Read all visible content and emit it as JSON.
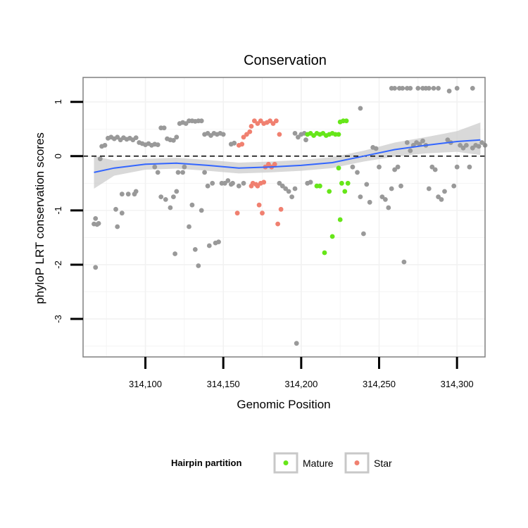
{
  "chart_data": {
    "type": "scatter",
    "title": "Conservation",
    "xlabel": "Genomic Position",
    "ylabel": "phyloP LRT conservation scores",
    "xlim": [
      314060,
      314318
    ],
    "ylim": [
      -3.7,
      1.45
    ],
    "x_ticks": [
      314100,
      314150,
      314200,
      314250,
      314300
    ],
    "x_tick_labels": [
      "314,100",
      "314,150",
      "314,200",
      "314,250",
      "314,300"
    ],
    "y_ticks": [
      1,
      0,
      -1,
      -2,
      -3
    ],
    "y_tick_labels": [
      "1",
      "0",
      "-1",
      "-2",
      "-3"
    ],
    "grid": true,
    "reference_line": {
      "y": 0,
      "style": "dashed"
    },
    "legend": {
      "title": "Hairpin partition",
      "position": "bottom",
      "items": [
        {
          "label": "Mature",
          "color": "#66e619"
        },
        {
          "label": "Star",
          "color": "#f08070"
        }
      ]
    },
    "colors": {
      "other": "#999999",
      "mature": "#66e619",
      "star": "#f08070",
      "smooth": "#3366ff",
      "band": "#cccccc"
    },
    "smooth": {
      "x": [
        314067,
        314080,
        314100,
        314120,
        314140,
        314160,
        314180,
        314200,
        314220,
        314240,
        314260,
        314280,
        314300,
        314315
      ],
      "y": [
        -0.3,
        -0.22,
        -0.15,
        -0.13,
        -0.17,
        -0.22,
        -0.2,
        -0.17,
        -0.12,
        0.0,
        0.12,
        0.2,
        0.27,
        0.3
      ],
      "lower": [
        -0.6,
        -0.36,
        -0.25,
        -0.23,
        -0.27,
        -0.32,
        -0.3,
        -0.27,
        -0.22,
        -0.1,
        -0.01,
        0.05,
        0.08,
        0.02
      ],
      "upper": [
        0.0,
        -0.08,
        -0.05,
        -0.03,
        -0.07,
        -0.12,
        -0.1,
        -0.07,
        -0.02,
        0.1,
        0.25,
        0.35,
        0.46,
        0.62
      ]
    },
    "series": [
      {
        "group": "other",
        "points": [
          [
            314067,
            -1.25
          ],
          [
            314068,
            -1.15
          ],
          [
            314069,
            -1.26
          ],
          [
            314070,
            -1.24
          ],
          [
            314068,
            -2.05
          ],
          [
            314071,
            -0.05
          ],
          [
            314072,
            0.18
          ],
          [
            314074,
            0.2
          ],
          [
            314076,
            0.33
          ],
          [
            314078,
            0.35
          ],
          [
            314080,
            0.32
          ],
          [
            314082,
            0.35
          ],
          [
            314084,
            0.3
          ],
          [
            314086,
            0.34
          ],
          [
            314088,
            0.31
          ],
          [
            314090,
            0.33
          ],
          [
            314092,
            0.3
          ],
          [
            314094,
            0.34
          ],
          [
            314096,
            0.25
          ],
          [
            314098,
            0.23
          ],
          [
            314100,
            0.21
          ],
          [
            314102,
            0.23
          ],
          [
            314104,
            0.2
          ],
          [
            314106,
            0.22
          ],
          [
            314108,
            0.21
          ],
          [
            314110,
            0.52
          ],
          [
            314112,
            0.52
          ],
          [
            314114,
            0.32
          ],
          [
            314116,
            0.3
          ],
          [
            314118,
            0.29
          ],
          [
            314120,
            0.35
          ],
          [
            314122,
            0.6
          ],
          [
            314124,
            0.62
          ],
          [
            314126,
            0.6
          ],
          [
            314128,
            0.65
          ],
          [
            314130,
            0.65
          ],
          [
            314132,
            0.64
          ],
          [
            314134,
            0.65
          ],
          [
            314136,
            0.65
          ],
          [
            314138,
            0.4
          ],
          [
            314140,
            0.42
          ],
          [
            314142,
            0.38
          ],
          [
            314144,
            0.42
          ],
          [
            314146,
            0.4
          ],
          [
            314148,
            0.42
          ],
          [
            314150,
            0.4
          ],
          [
            314155,
            0.22
          ],
          [
            314157,
            0.24
          ],
          [
            314081,
            -0.98
          ],
          [
            314082,
            -1.3
          ],
          [
            314085,
            -1.05
          ],
          [
            314085,
            -0.7
          ],
          [
            314089,
            -0.7
          ],
          [
            314093,
            -0.7
          ],
          [
            314094,
            -0.65
          ],
          [
            314106,
            -0.2
          ],
          [
            314108,
            -0.3
          ],
          [
            314110,
            -0.75
          ],
          [
            314113,
            -0.8
          ],
          [
            314116,
            -0.95
          ],
          [
            314118,
            -0.75
          ],
          [
            314120,
            -0.65
          ],
          [
            314119,
            -1.8
          ],
          [
            314121,
            -0.3
          ],
          [
            314124,
            -0.3
          ],
          [
            314125,
            -0.2
          ],
          [
            314128,
            -1.3
          ],
          [
            314130,
            -0.9
          ],
          [
            314132,
            -1.72
          ],
          [
            314134,
            -2.02
          ],
          [
            314136,
            -1.0
          ],
          [
            314138,
            -0.3
          ],
          [
            314140,
            -0.55
          ],
          [
            314141,
            -1.65
          ],
          [
            314143,
            -0.5
          ],
          [
            314145,
            -1.6
          ],
          [
            314147,
            -1.58
          ],
          [
            314149,
            -0.5
          ],
          [
            314151,
            -0.5
          ],
          [
            314153,
            -0.45
          ],
          [
            314155,
            -0.52
          ],
          [
            314156,
            -0.5
          ],
          [
            314160,
            -0.55
          ],
          [
            314163,
            -0.5
          ],
          [
            314186,
            -0.5
          ],
          [
            314188,
            -0.55
          ],
          [
            314190,
            -0.6
          ],
          [
            314192,
            -0.65
          ],
          [
            314194,
            -0.75
          ],
          [
            314196,
            -0.6
          ],
          [
            314196,
            0.42
          ],
          [
            314198,
            0.35
          ],
          [
            314200,
            0.4
          ],
          [
            314202,
            0.42
          ],
          [
            314203,
            0.3
          ],
          [
            314204,
            -0.5
          ],
          [
            314206,
            -0.48
          ],
          [
            314197,
            -3.45
          ],
          [
            314238,
            0.88
          ],
          [
            314233,
            -0.2
          ],
          [
            314236,
            -0.3
          ],
          [
            314238,
            -0.75
          ],
          [
            314240,
            -1.43
          ],
          [
            314242,
            -0.52
          ],
          [
            314244,
            -0.85
          ],
          [
            314246,
            0.16
          ],
          [
            314248,
            0.14
          ],
          [
            314250,
            -0.2
          ],
          [
            314252,
            -0.75
          ],
          [
            314254,
            -0.8
          ],
          [
            314256,
            -0.95
          ],
          [
            314258,
            -0.6
          ],
          [
            314260,
            -0.25
          ],
          [
            314262,
            -0.2
          ],
          [
            314264,
            -0.55
          ],
          [
            314266,
            -1.95
          ],
          [
            314268,
            0.25
          ],
          [
            314270,
            0.1
          ],
          [
            314272,
            0.2
          ],
          [
            314274,
            0.25
          ],
          [
            314276,
            0.22
          ],
          [
            314278,
            0.28
          ],
          [
            314280,
            0.2
          ],
          [
            314282,
            -0.6
          ],
          [
            314284,
            -0.2
          ],
          [
            314286,
            -0.25
          ],
          [
            314288,
            -0.75
          ],
          [
            314290,
            -0.8
          ],
          [
            314292,
            -0.65
          ],
          [
            314294,
            0.3
          ],
          [
            314296,
            0.25
          ],
          [
            314298,
            -0.55
          ],
          [
            314300,
            -0.2
          ],
          [
            314302,
            0.2
          ],
          [
            314304,
            0.15
          ],
          [
            314306,
            0.2
          ],
          [
            314308,
            -0.2
          ],
          [
            314310,
            0.15
          ],
          [
            314312,
            0.2
          ],
          [
            314314,
            0.18
          ],
          [
            314316,
            0.25
          ],
          [
            314258,
            1.25
          ],
          [
            314260,
            1.25
          ],
          [
            314263,
            1.25
          ],
          [
            314265,
            1.25
          ],
          [
            314268,
            1.25
          ],
          [
            314270,
            1.25
          ],
          [
            314275,
            1.25
          ],
          [
            314278,
            1.25
          ],
          [
            314280,
            1.25
          ],
          [
            314282,
            1.25
          ],
          [
            314285,
            1.25
          ],
          [
            314288,
            1.25
          ],
          [
            314295,
            1.2
          ],
          [
            314300,
            1.25
          ],
          [
            314310,
            1.25
          ],
          [
            314318,
            0.2
          ]
        ]
      },
      {
        "group": "star",
        "points": [
          [
            314160,
            0.2
          ],
          [
            314162,
            0.22
          ],
          [
            314163,
            0.35
          ],
          [
            314165,
            0.4
          ],
          [
            314167,
            0.45
          ],
          [
            314168,
            0.55
          ],
          [
            314170,
            0.65
          ],
          [
            314172,
            0.6
          ],
          [
            314174,
            0.65
          ],
          [
            314176,
            0.6
          ],
          [
            314178,
            0.62
          ],
          [
            314180,
            0.65
          ],
          [
            314182,
            0.6
          ],
          [
            314184,
            0.65
          ],
          [
            314186,
            0.4
          ],
          [
            314168,
            -0.55
          ],
          [
            314169,
            -0.5
          ],
          [
            314171,
            -0.52
          ],
          [
            314172,
            -0.55
          ],
          [
            314174,
            -0.5
          ],
          [
            314176,
            -0.48
          ],
          [
            314173,
            -0.9
          ],
          [
            314175,
            -1.05
          ],
          [
            314177,
            -0.2
          ],
          [
            314179,
            -0.15
          ],
          [
            314181,
            -0.2
          ],
          [
            314183,
            -0.15
          ],
          [
            314185,
            -1.25
          ],
          [
            314187,
            -0.98
          ],
          [
            314159,
            -1.05
          ]
        ]
      },
      {
        "group": "mature",
        "points": [
          [
            314204,
            0.4
          ],
          [
            314206,
            0.42
          ],
          [
            314208,
            0.38
          ],
          [
            314210,
            0.42
          ],
          [
            314212,
            0.4
          ],
          [
            314214,
            0.42
          ],
          [
            314216,
            0.38
          ],
          [
            314218,
            0.4
          ],
          [
            314220,
            0.42
          ],
          [
            314222,
            0.4
          ],
          [
            314224,
            0.4
          ],
          [
            314225,
            0.63
          ],
          [
            314227,
            0.65
          ],
          [
            314229,
            0.65
          ],
          [
            314224,
            -0.22
          ],
          [
            314226,
            -0.5
          ],
          [
            314228,
            -0.65
          ],
          [
            314230,
            -0.5
          ],
          [
            314225,
            -1.17
          ],
          [
            314220,
            -1.48
          ],
          [
            314215,
            -1.78
          ],
          [
            314210,
            -0.55
          ],
          [
            314212,
            -0.55
          ],
          [
            314218,
            -0.65
          ]
        ]
      }
    ]
  }
}
